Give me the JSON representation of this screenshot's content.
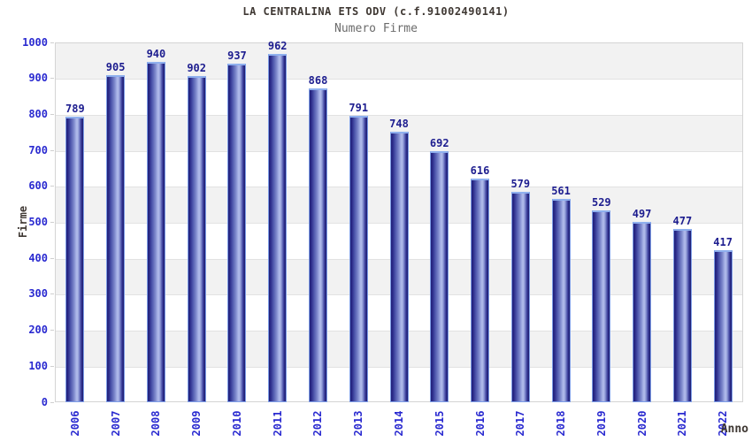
{
  "header": {
    "title": "LA CENTRALINA ETS ODV (c.f.91002490141)",
    "subtitle": "Numero Firme"
  },
  "chart_data": {
    "type": "bar",
    "title": "LA CENTRALINA ETS ODV (c.f.91002490141)",
    "subtitle": "Numero Firme",
    "xlabel": "Anno",
    "ylabel": "Firme",
    "categories": [
      "2006",
      "2007",
      "2008",
      "2009",
      "2010",
      "2011",
      "2012",
      "2013",
      "2014",
      "2015",
      "2016",
      "2017",
      "2018",
      "2019",
      "2020",
      "2021",
      "2022"
    ],
    "values": [
      789,
      905,
      940,
      902,
      937,
      962,
      868,
      791,
      748,
      692,
      616,
      579,
      561,
      529,
      497,
      477,
      417
    ],
    "ylim": [
      0,
      1000
    ],
    "ytick_step": 100,
    "grid": true,
    "grid_bands": true,
    "legend": "none"
  },
  "colors": {
    "bar_dark": "#20207a",
    "bar_light": "#b2bcea",
    "bar_border": "#7d9ce6",
    "tick_label": "#2a2ad0",
    "value_label": "#1d1d8f",
    "title_text": "#3f3833",
    "subtitle_text": "#6b6b6b",
    "band_gray": "#f2f2f2",
    "grid_line": "#e2e2e2"
  }
}
